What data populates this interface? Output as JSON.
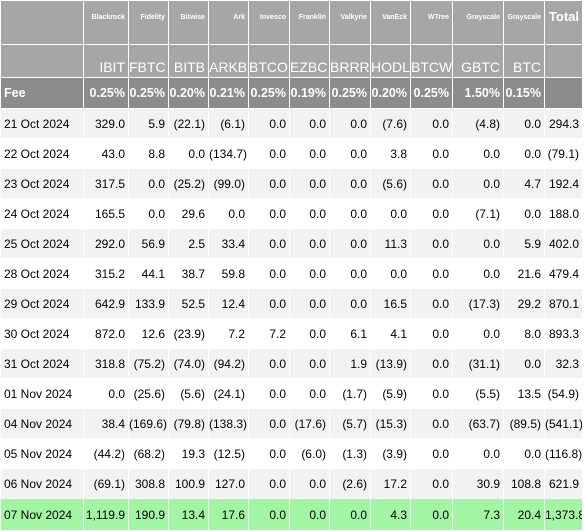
{
  "issuers": [
    "Blackrock",
    "Fidelity",
    "Bitwise",
    "Ark",
    "Invesco",
    "Franklin",
    "Valkyrie",
    "VanEck",
    "WTree",
    "Grayscale",
    "Grayscale",
    "Total"
  ],
  "tickers": [
    "IBIT",
    "FBTC",
    "BITB",
    "ARKB",
    "BTCO",
    "EZBC",
    "BRRR",
    "HODL",
    "BTCW",
    "GBTC",
    "BTC",
    ""
  ],
  "fee_label": "Fee",
  "fees": [
    "0.25%",
    "0.25%",
    "0.20%",
    "0.21%",
    "0.25%",
    "0.19%",
    "0.25%",
    "0.20%",
    "0.25%",
    "1.50%",
    "0.15%",
    ""
  ],
  "rows": [
    {
      "date": "21 Oct 2024",
      "values": [
        "329.0",
        "5.9",
        "(22.1)",
        "(6.1)",
        "0.0",
        "0.0",
        "0.0",
        "(7.6)",
        "0.0",
        "(4.8)",
        "0.0",
        "294.3"
      ]
    },
    {
      "date": "22 Oct 2024",
      "values": [
        "43.0",
        "8.8",
        "0.0",
        "(134.7)",
        "0.0",
        "0.0",
        "0.0",
        "3.8",
        "0.0",
        "0.0",
        "0.0",
        "(79.1)"
      ]
    },
    {
      "date": "23 Oct 2024",
      "values": [
        "317.5",
        "0.0",
        "(25.2)",
        "(99.0)",
        "0.0",
        "0.0",
        "0.0",
        "(5.6)",
        "0.0",
        "0.0",
        "4.7",
        "192.4"
      ]
    },
    {
      "date": "24 Oct 2024",
      "values": [
        "165.5",
        "0.0",
        "29.6",
        "0.0",
        "0.0",
        "0.0",
        "0.0",
        "0.0",
        "0.0",
        "(7.1)",
        "0.0",
        "188.0"
      ]
    },
    {
      "date": "25 Oct 2024",
      "values": [
        "292.0",
        "56.9",
        "2.5",
        "33.4",
        "0.0",
        "0.0",
        "0.0",
        "11.3",
        "0.0",
        "0.0",
        "5.9",
        "402.0"
      ]
    },
    {
      "date": "28 Oct 2024",
      "values": [
        "315.2",
        "44.1",
        "38.7",
        "59.8",
        "0.0",
        "0.0",
        "0.0",
        "0.0",
        "0.0",
        "0.0",
        "21.6",
        "479.4"
      ]
    },
    {
      "date": "29 Oct 2024",
      "values": [
        "642.9",
        "133.9",
        "52.5",
        "12.4",
        "0.0",
        "0.0",
        "0.0",
        "16.5",
        "0.0",
        "(17.3)",
        "29.2",
        "870.1"
      ]
    },
    {
      "date": "30 Oct 2024",
      "values": [
        "872.0",
        "12.6",
        "(23.9)",
        "7.2",
        "7.2",
        "0.0",
        "6.1",
        "4.1",
        "0.0",
        "0.0",
        "8.0",
        "893.3"
      ]
    },
    {
      "date": "31 Oct 2024",
      "values": [
        "318.8",
        "(75.2)",
        "(74.0)",
        "(94.2)",
        "0.0",
        "0.0",
        "1.9",
        "(13.9)",
        "0.0",
        "(31.1)",
        "0.0",
        "32.3"
      ]
    },
    {
      "date": "01 Nov 2024",
      "values": [
        "0.0",
        "(25.6)",
        "(5.6)",
        "(24.1)",
        "0.0",
        "0.0",
        "(1.7)",
        "(5.9)",
        "0.0",
        "(5.5)",
        "13.5",
        "(54.9)"
      ]
    },
    {
      "date": "04 Nov 2024",
      "values": [
        "38.4",
        "(169.6)",
        "(79.8)",
        "(138.3)",
        "0.0",
        "(17.6)",
        "(5.7)",
        "(15.3)",
        "0.0",
        "(63.7)",
        "(89.5)",
        "(541.1)"
      ]
    },
    {
      "date": "05 Nov 2024",
      "values": [
        "(44.2)",
        "(68.2)",
        "19.3",
        "(12.5)",
        "0.0",
        "(6.0)",
        "(1.3)",
        "(3.9)",
        "0.0",
        "0.0",
        "0.0",
        "(116.8)"
      ]
    },
    {
      "date": "06 Nov 2024",
      "values": [
        "(69.1)",
        "308.8",
        "100.9",
        "127.0",
        "0.0",
        "0.0",
        "(2.6)",
        "17.2",
        "0.0",
        "30.9",
        "108.8",
        "621.9"
      ]
    },
    {
      "date": "07 Nov 2024",
      "values": [
        "1,119.9",
        "190.9",
        "13.4",
        "17.6",
        "0.0",
        "0.0",
        "0.0",
        "4.3",
        "0.0",
        "7.3",
        "20.4",
        "1,373.8"
      ]
    }
  ],
  "colors": {
    "header_bg": "#a6a6a6",
    "fee_bg": "#8c8c8c",
    "negative": "#e60000",
    "highlight_row": "#a2f5a2",
    "stripe": "#f2f2f2"
  }
}
